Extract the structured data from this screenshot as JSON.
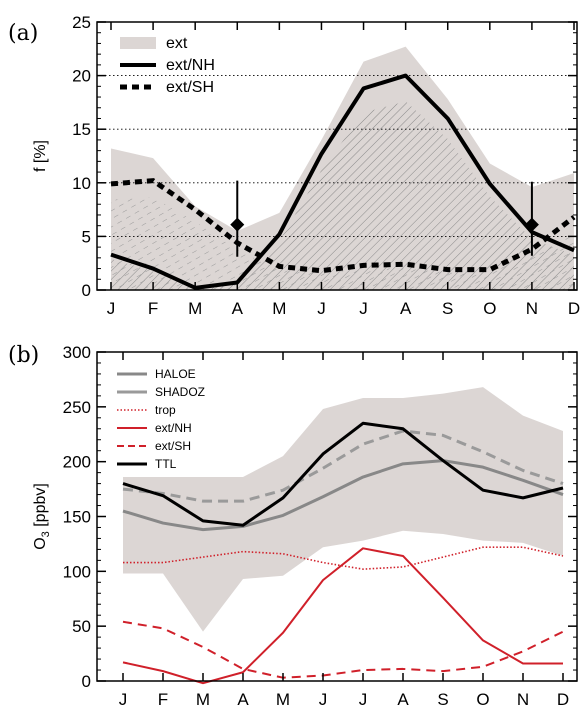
{
  "chart_data": [
    {
      "type": "area",
      "panel_label": "(a)",
      "ylabel": "f [%]",
      "categories": [
        "J",
        "F",
        "M",
        "A",
        "M",
        "J",
        "J",
        "A",
        "S",
        "O",
        "N",
        "D"
      ],
      "ylim": [
        0,
        25
      ],
      "yticks": [
        0,
        5,
        10,
        15,
        20,
        25
      ],
      "gridlines_y": [
        5,
        10,
        15,
        20
      ],
      "legend": [
        "ext",
        "ext/NH",
        "ext/SH"
      ],
      "series": [
        {
          "name": "ext",
          "values": [
            13.2,
            12.3,
            7.8,
            5.5,
            7.2,
            14.0,
            21.3,
            22.7,
            17.8,
            11.8,
            9.6,
            10.9
          ]
        },
        {
          "name": "ext/NH",
          "values": [
            3.3,
            2.0,
            0.2,
            0.7,
            5.2,
            12.7,
            18.8,
            20.0,
            16.0,
            9.9,
            5.4,
            3.7
          ]
        },
        {
          "name": "ext/SH",
          "values": [
            9.9,
            10.2,
            7.5,
            4.4,
            2.2,
            1.8,
            2.3,
            2.4,
            1.9,
            1.9,
            3.8,
            6.8
          ]
        }
      ],
      "markers": [
        {
          "month": "A",
          "value": 6.1,
          "range": [
            3.1,
            10.2
          ]
        },
        {
          "month": "N",
          "value": 6.1,
          "range": [
            3.2,
            10.1
          ]
        }
      ]
    },
    {
      "type": "line",
      "panel_label": "(b)",
      "ylabel": "O3 [ppbv]",
      "categories": [
        "J",
        "F",
        "M",
        "A",
        "M",
        "J",
        "J",
        "A",
        "S",
        "O",
        "N",
        "D"
      ],
      "ylim": [
        0,
        300
      ],
      "yticks": [
        0,
        50,
        100,
        150,
        200,
        250,
        300
      ],
      "band_upper": [
        186,
        186,
        186,
        186,
        205,
        248,
        258,
        258,
        262,
        268,
        242,
        228
      ],
      "band_lower": [
        98,
        98,
        45,
        93,
        96,
        122,
        128,
        137,
        134,
        128,
        126,
        114
      ],
      "series": [
        {
          "name": "HALOE",
          "color": "#888888",
          "values": [
            155,
            144,
            138,
            141,
            151,
            168,
            186,
            198,
            201,
            195,
            183,
            170
          ]
        },
        {
          "name": "SHADOZ",
          "color": "#9a9a9a",
          "values": [
            175,
            171,
            164,
            164,
            174,
            194,
            216,
            228,
            224,
            209,
            192,
            180
          ]
        },
        {
          "name": "trop",
          "color": "#d0202a",
          "values": [
            108,
            108,
            113,
            118,
            116,
            108,
            102,
            104,
            113,
            122,
            122,
            114
          ]
        },
        {
          "name": "ext/NH",
          "color": "#d0202a",
          "values": [
            17,
            9,
            -2,
            8,
            44,
            92,
            121,
            114,
            76,
            37,
            16,
            16
          ]
        },
        {
          "name": "ext/SH",
          "color": "#d0202a",
          "values": [
            54,
            48,
            31,
            11,
            3,
            5,
            10,
            11,
            9,
            13,
            27,
            45
          ]
        },
        {
          "name": "TTL",
          "color": "#000000",
          "values": [
            180,
            169,
            146,
            142,
            167,
            207,
            235,
            230,
            201,
            174,
            167,
            176
          ]
        }
      ]
    }
  ],
  "colors": {
    "band": "#dcd6d4",
    "red": "#d0202a",
    "grey": "#8c8c8c"
  }
}
